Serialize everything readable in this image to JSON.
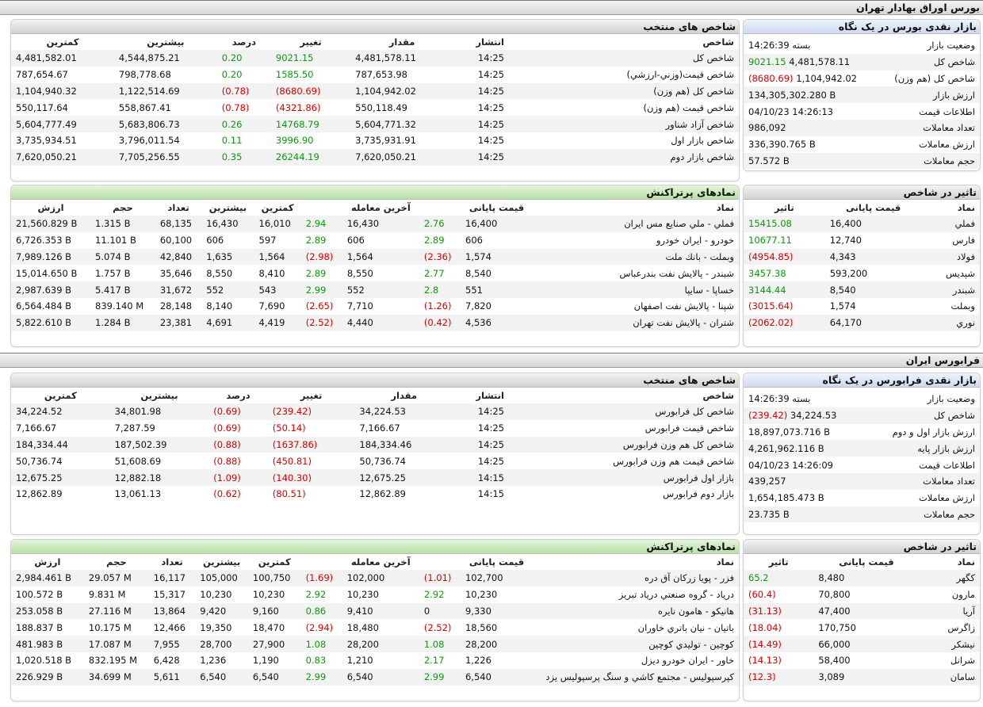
{
  "tehran": {
    "title": "بورس اوراق بهادار تهران",
    "glance": {
      "title": "بازار نقدی بورس در یک نگاه",
      "rows": [
        {
          "k": "وضعیت بازار",
          "v": "بسته 14:26:39",
          "cls": ""
        },
        {
          "k": "شاخص کل",
          "v": "4,481,578.11",
          "v2": "9021.15",
          "cls2": "pos"
        },
        {
          "k": "شاخص کل (هم وزن)",
          "v": "1,104,942.02",
          "v2": "(8680.69)",
          "cls2": "neg"
        },
        {
          "k": "ارزش بازار",
          "v": "134,305,302.280 B",
          "cls": ""
        },
        {
          "k": "اطلاعات قیمت",
          "v": "04/10/23 14:26:13",
          "cls": ""
        },
        {
          "k": "تعداد معاملات",
          "v": "986,092",
          "cls": ""
        },
        {
          "k": "ارزش معاملات",
          "v": "336,390.765 B",
          "cls": ""
        },
        {
          "k": "حجم معاملات",
          "v": "57.572 B",
          "cls": ""
        }
      ]
    },
    "indices": {
      "title": "شاخص های منتخب",
      "headers": [
        "شاخص",
        "انتشار",
        "مقدار",
        "تغییر",
        "درصد",
        "بیشترین",
        "کمترین"
      ],
      "rows": [
        {
          "name": "شاخص کل",
          "time": "14:25",
          "value": "4,481,578.11",
          "change": "9021.15",
          "pct": "0.20",
          "high": "4,544,875.21",
          "low": "4,481,582.01",
          "dir": "pos"
        },
        {
          "name": "شاخص قیمت(وزني-ارزشي)",
          "time": "14:25",
          "value": "787,653.98",
          "change": "1585.50",
          "pct": "0.20",
          "high": "798,778.68",
          "low": "787,654.67",
          "dir": "pos"
        },
        {
          "name": "شاخص کل (هم وزن)",
          "time": "14:25",
          "value": "1,104,942.02",
          "change": "(8680.69)",
          "pct": "(0.78)",
          "high": "1,122,514.69",
          "low": "1,104,940.32",
          "dir": "neg"
        },
        {
          "name": "شاخص قیمت (هم وزن)",
          "time": "14:25",
          "value": "550,118.49",
          "change": "(4321.86)",
          "pct": "(0.78)",
          "high": "558,867.41",
          "low": "550,117.64",
          "dir": "neg"
        },
        {
          "name": "شاخص آزاد شناور",
          "time": "14:25",
          "value": "5,604,771.32",
          "change": "14768.79",
          "pct": "0.26",
          "high": "5,683,806.73",
          "low": "5,604,777.49",
          "dir": "pos"
        },
        {
          "name": "شاخص بازار اول",
          "time": "14:25",
          "value": "3,735,931.91",
          "change": "3996.90",
          "pct": "0.11",
          "high": "3,796,011.54",
          "low": "3,735,934.51",
          "dir": "pos"
        },
        {
          "name": "شاخص بازار دوم",
          "time": "14:25",
          "value": "7,620,050.21",
          "change": "26244.19",
          "pct": "0.35",
          "high": "7,705,256.55",
          "low": "7,620,050.21",
          "dir": "pos"
        }
      ]
    },
    "impact": {
      "title": "تاثیر در شاخص",
      "headers": [
        "نماد",
        "قیمت پایانی",
        "تاثیر"
      ],
      "rows": [
        {
          "sym": "فملي",
          "price": "16,400",
          "impact": "15415.08",
          "dir": "pos"
        },
        {
          "sym": "فارس",
          "price": "12,740",
          "impact": "10677.11",
          "dir": "pos"
        },
        {
          "sym": "فولاد",
          "price": "4,343",
          "impact": "(4954.85)",
          "dir": "neg"
        },
        {
          "sym": "شپديس",
          "price": "593,200",
          "impact": "3457.38",
          "dir": "pos"
        },
        {
          "sym": "شبندر",
          "price": "8,540",
          "impact": "3144.44",
          "dir": "pos"
        },
        {
          "sym": "وبملت",
          "price": "1,574",
          "impact": "(3015.64)",
          "dir": "neg"
        },
        {
          "sym": "نوري",
          "price": "64,170",
          "impact": "(2062.02)",
          "dir": "neg"
        }
      ]
    },
    "active": {
      "title": "نمادهای پرتراکنش",
      "headers": [
        "نماد",
        "قیمت پایانی",
        "",
        "آخرین معامله",
        "",
        "کمترین",
        "بیشترین",
        "تعداد",
        "حجم",
        "ارزش"
      ],
      "rows": [
        {
          "sym": "فملي - ملي صنايع مس ايران",
          "close": "16,400",
          "closeCh": "2.76",
          "closeDir": "pos",
          "last": "16,430",
          "lastCh": "2.94",
          "lastDir": "pos",
          "low": "16,010",
          "high": "16,430",
          "count": "68,135",
          "vol": "1.315 B",
          "val": "21,560.829 B"
        },
        {
          "sym": "خودرو - ايران خودرو",
          "close": "606",
          "closeCh": "2.89",
          "closeDir": "pos",
          "last": "606",
          "lastCh": "2.89",
          "lastDir": "pos",
          "low": "597",
          "high": "606",
          "count": "60,100",
          "vol": "11.101 B",
          "val": "6,726.353 B"
        },
        {
          "sym": "وبملت - بانك ملت",
          "close": "1,574",
          "closeCh": "(2.36)",
          "closeDir": "neg",
          "last": "1,564",
          "lastCh": "(2.98)",
          "lastDir": "neg",
          "low": "1,564",
          "high": "1,635",
          "count": "42,840",
          "vol": "5.074 B",
          "val": "7,989.126 B"
        },
        {
          "sym": "شبندر - پالايش نفت بندرعباس",
          "close": "8,540",
          "closeCh": "2.77",
          "closeDir": "pos",
          "last": "8,550",
          "lastCh": "2.89",
          "lastDir": "pos",
          "low": "8,410",
          "high": "8,550",
          "count": "35,646",
          "vol": "1.757 B",
          "val": "15,014.650 B"
        },
        {
          "sym": "خساپا - سايپا",
          "close": "551",
          "closeCh": "2.8",
          "closeDir": "pos",
          "last": "552",
          "lastCh": "2.99",
          "lastDir": "pos",
          "low": "543",
          "high": "552",
          "count": "31,672",
          "vol": "5.417 B",
          "val": "2,987.639 B"
        },
        {
          "sym": "شپنا - پالايش نفت اصفهان",
          "close": "7,820",
          "closeCh": "(1.26)",
          "closeDir": "neg",
          "last": "7,710",
          "lastCh": "(2.65)",
          "lastDir": "neg",
          "low": "7,690",
          "high": "8,140",
          "count": "28,148",
          "vol": "839.140 M",
          "val": "6,564.484 B"
        },
        {
          "sym": "شتران - پالايش نفت تهران",
          "close": "4,536",
          "closeCh": "(0.42)",
          "closeDir": "neg",
          "last": "4,440",
          "lastCh": "(2.52)",
          "lastDir": "neg",
          "low": "4,419",
          "high": "4,691",
          "count": "23,381",
          "vol": "1.284 B",
          "val": "5,822.610 B"
        }
      ]
    }
  },
  "farabourse": {
    "title": "فرابورس ایران",
    "glance": {
      "title": "بازار نقدی فرابورس در یک نگاه",
      "rows": [
        {
          "k": "وضعیت بازار",
          "v": "بسته 14:26:39",
          "cls": ""
        },
        {
          "k": "شاخص کل",
          "v": "34,224.53",
          "v2": "(239.42)",
          "cls2": "neg"
        },
        {
          "k": "ارزش بازار اول و دوم",
          "kSmall": "اول و دوم",
          "v": "18,897,073.716 B",
          "cls": ""
        },
        {
          "k": "ارزش بازار پایه",
          "v": "4,261,962.116 B",
          "cls": ""
        },
        {
          "k": "اطلاعات قیمت",
          "v": "04/10/23 14:26:09",
          "cls": ""
        },
        {
          "k": "تعداد معاملات",
          "v": "439,257",
          "cls": ""
        },
        {
          "k": "ارزش معاملات",
          "v": "1,654,185.473 B",
          "cls": ""
        },
        {
          "k": "حجم معاملات",
          "v": "23.735 B",
          "cls": ""
        }
      ]
    },
    "indices": {
      "title": "شاخص های منتخب",
      "headers": [
        "شاخص",
        "انتشار",
        "مقدار",
        "تغییر",
        "درصد",
        "بیشترین",
        "کمترین"
      ],
      "rows": [
        {
          "name": "شاخص کل فرابورس",
          "time": "14:25",
          "value": "34,224.53",
          "change": "(239.42)",
          "pct": "(0.69)",
          "high": "34,801.98",
          "low": "34,224.52",
          "dir": "neg"
        },
        {
          "name": "شاخص قیمت فرابورس",
          "time": "14:25",
          "value": "7,166.67",
          "change": "(50.14)",
          "pct": "(0.69)",
          "high": "7,287.59",
          "low": "7,166.67",
          "dir": "neg"
        },
        {
          "name": "شاخص کل هم وزن فرابورس",
          "time": "14:25",
          "value": "184,334.46",
          "change": "(1637.86)",
          "pct": "(0.88)",
          "high": "187,502.39",
          "low": "184,334.44",
          "dir": "neg"
        },
        {
          "name": "شاخص قیمت هم وزن فرابورس",
          "time": "14:25",
          "value": "50,736.74",
          "change": "(450.81)",
          "pct": "(0.88)",
          "high": "51,608.69",
          "low": "50,736.74",
          "dir": "neg"
        },
        {
          "name": "بازار اول فرابورس",
          "time": "14:15",
          "value": "12,675.25",
          "change": "(140.30)",
          "pct": "(1.09)",
          "high": "12,882.18",
          "low": "12,675.25",
          "dir": "neg"
        },
        {
          "name": "بازار دوم فرابورس",
          "time": "14:15",
          "value": "12,862.89",
          "change": "(80.51)",
          "pct": "(0.62)",
          "high": "13,061.13",
          "low": "12,862.89",
          "dir": "neg"
        }
      ]
    },
    "impact": {
      "title": "تاثیر در شاخص",
      "headers": [
        "نماد",
        "قیمت پایانی",
        "تاثیر"
      ],
      "rows": [
        {
          "sym": "کگهر",
          "price": "8,480",
          "impact": "65.2",
          "dir": "pos"
        },
        {
          "sym": "مارون",
          "price": "70,800",
          "impact": "(60.4)",
          "dir": "neg"
        },
        {
          "sym": "آریا",
          "price": "47,400",
          "impact": "(31.13)",
          "dir": "neg"
        },
        {
          "sym": "زاگرس",
          "price": "170,750",
          "impact": "(18.04)",
          "dir": "neg"
        },
        {
          "sym": "نیشکر",
          "price": "66,000",
          "impact": "(14.49)",
          "dir": "neg"
        },
        {
          "sym": "شرانل",
          "price": "58,400",
          "impact": "(14.13)",
          "dir": "neg"
        },
        {
          "sym": "سامان",
          "price": "3,089",
          "impact": "(12.3)",
          "dir": "neg"
        }
      ]
    },
    "active": {
      "title": "نمادهای پرتراکنش",
      "headers": [
        "نماد",
        "قیمت پایانی",
        "",
        "آخرین معامله",
        "",
        "کمترین",
        "بیشترین",
        "تعداد",
        "حجم",
        "ارزش"
      ],
      "rows": [
        {
          "sym": "فزر - پويا زركان آق دره",
          "close": "102,700",
          "closeCh": "(1.01)",
          "closeDir": "neg",
          "last": "102,000",
          "lastCh": "(1.69)",
          "lastDir": "neg",
          "low": "100,750",
          "high": "105,000",
          "count": "16,117",
          "vol": "29.057 M",
          "val": "2,984.461 B"
        },
        {
          "sym": "درياد - گروه صنعتي درياد تبريز",
          "close": "10,230",
          "closeCh": "2.92",
          "closeDir": "pos",
          "last": "10,230",
          "lastCh": "2.92",
          "lastDir": "pos",
          "low": "10,230",
          "high": "10,230",
          "count": "15,317",
          "vol": "9.831 M",
          "val": "100.572 B"
        },
        {
          "sym": "هانيكو - هامون نايره",
          "close": "9,330",
          "closeCh": "0",
          "closeDir": "",
          "last": "9,410",
          "lastCh": "0.86",
          "lastDir": "pos",
          "low": "9,160",
          "high": "9,420",
          "count": "13,864",
          "vol": "27.116 M",
          "val": "253.058 B"
        },
        {
          "sym": "باتيان - نيان باتري خاوران",
          "close": "18,560",
          "closeCh": "(2.52)",
          "closeDir": "neg",
          "last": "18,480",
          "lastCh": "(2.94)",
          "lastDir": "neg",
          "low": "18,470",
          "high": "19,350",
          "count": "12,466",
          "vol": "10.175 M",
          "val": "188.837 B"
        },
        {
          "sym": "كوچين - توليدي كوچين",
          "close": "28,200",
          "closeCh": "1.08",
          "closeDir": "pos",
          "last": "28,200",
          "lastCh": "1.08",
          "lastDir": "pos",
          "low": "27,900",
          "high": "28,700",
          "count": "7,955",
          "vol": "17.087 M",
          "val": "481.983 B"
        },
        {
          "sym": "خاور - ايران خودرو ديزل",
          "close": "1,226",
          "closeCh": "2.17",
          "closeDir": "pos",
          "last": "1,210",
          "lastCh": "0.83",
          "lastDir": "pos",
          "low": "1,190",
          "high": "1,236",
          "count": "6,428",
          "vol": "832.195 M",
          "val": "1,020.518 B"
        },
        {
          "sym": "كپرسپوليس - مجتمع كاشي و سنگ پرسپوليس يزد",
          "close": "6,540",
          "closeCh": "2.99",
          "closeDir": "pos",
          "last": "6,540",
          "lastCh": "2.99",
          "lastDir": "pos",
          "low": "6,540",
          "high": "6,540",
          "count": "5,611",
          "vol": "34.699 M",
          "val": "226.929 B"
        }
      ]
    }
  },
  "colors": {
    "positive": "#0a9a0a",
    "negative": "#d40000"
  }
}
